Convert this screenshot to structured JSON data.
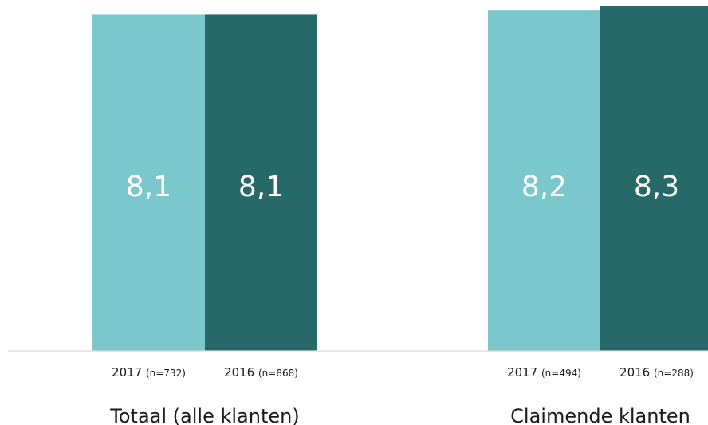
{
  "chart_data": {
    "type": "bar",
    "groups": [
      {
        "name": "Totaal (alle klanten)",
        "bars": [
          {
            "year": "2017",
            "n_label": "(n=732)",
            "value": 8.1,
            "value_label": "8,1",
            "color": "#7ac8cc"
          },
          {
            "year": "2016",
            "n_label": "(n=868)",
            "value": 8.1,
            "value_label": "8,1",
            "color": "#276868"
          }
        ]
      },
      {
        "name": "Claimende klanten",
        "bars": [
          {
            "year": "2017",
            "n_label": "(n=494)",
            "value": 8.2,
            "value_label": "8,2",
            "color": "#7ac8cc"
          },
          {
            "year": "2016",
            "n_label": "(n=288)",
            "value": 8.3,
            "value_label": "8,3",
            "color": "#276868"
          }
        ]
      }
    ],
    "ylim": [
      0,
      8.3
    ],
    "grid": false,
    "colors": {
      "series_2017": "#7ac8cc",
      "series_2016": "#276868",
      "axis": "#d9d9d9"
    }
  }
}
